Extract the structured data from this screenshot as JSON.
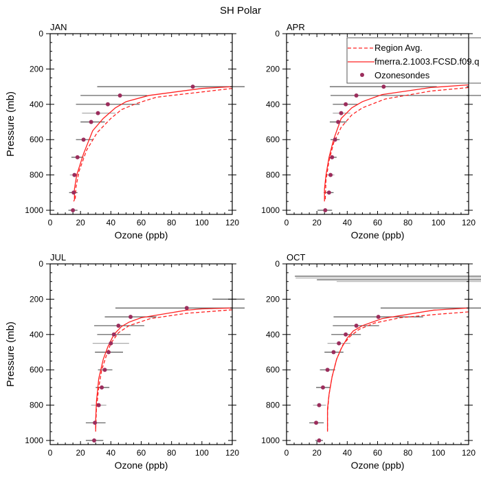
{
  "title": "SH Polar",
  "chart_data": {
    "type": "line",
    "title": "SH Polar",
    "xlabel": "Ozone (ppb)",
    "ylabel": "Pressure (mb)",
    "xlim": [
      0,
      120
    ],
    "ylim": [
      1025,
      0
    ],
    "x_ticks": [
      0,
      20,
      40,
      60,
      80,
      100,
      120
    ],
    "y_ticks": [
      0,
      200,
      400,
      600,
      800,
      1000
    ],
    "grid": false,
    "legend": {
      "placement": "top-right of APR panel",
      "entries": [
        {
          "label": "Region Avg.",
          "style": "dashed-line",
          "color": "#ff2020"
        },
        {
          "label": "fmerra.2.1003.FCSD.f09.q",
          "style": "solid-line",
          "color": "#ff2020"
        },
        {
          "label": "Ozonesondes",
          "style": "marker",
          "color": "#9b2d5c"
        }
      ]
    },
    "colors": {
      "model": "#ff2020",
      "obs": "#9b2d5c",
      "errorbar": "#555555",
      "errorbar_light": "#aaaaaa",
      "axis": "#000000"
    },
    "panels": [
      {
        "label": "JAN",
        "model": [
          [
            120,
            300
          ],
          [
            100,
            310
          ],
          [
            65,
            350
          ],
          [
            50,
            385
          ],
          [
            43,
            420
          ],
          [
            35,
            480
          ],
          [
            28,
            550
          ],
          [
            22,
            680
          ],
          [
            17.5,
            800
          ],
          [
            16,
            880
          ],
          [
            16,
            940
          ],
          [
            15.5,
            950
          ]
        ],
        "region_avg": [
          [
            120,
            310
          ],
          [
            100,
            330
          ],
          [
            70,
            360
          ],
          [
            57,
            395
          ],
          [
            47,
            430
          ],
          [
            40,
            480
          ],
          [
            31,
            560
          ],
          [
            24,
            660
          ],
          [
            19,
            780
          ],
          [
            17,
            870
          ],
          [
            16.5,
            940
          ]
        ],
        "sondes": [
          {
            "p": 300,
            "v": 94,
            "lo": 31,
            "hi": 125
          },
          {
            "p": 350,
            "v": 46,
            "lo": 20,
            "hi": 64
          },
          {
            "p": 400,
            "v": 38,
            "lo": 17,
            "hi": 59
          },
          {
            "p": 450,
            "v": 31.5,
            "lo": 21,
            "hi": 43
          },
          {
            "p": 500,
            "v": 27,
            "lo": 20,
            "hi": 36
          },
          {
            "p": 600,
            "v": 22,
            "lo": 17,
            "hi": 28
          },
          {
            "p": 700,
            "v": 18,
            "lo": 14,
            "hi": 22
          },
          {
            "p": 800,
            "v": 16,
            "lo": 13,
            "hi": 19
          },
          {
            "p": 900,
            "v": 15.5,
            "lo": 12.5,
            "hi": 18
          },
          {
            "p": 1000,
            "v": 15,
            "lo": 12,
            "hi": 18
          }
        ]
      },
      {
        "label": "APR",
        "model": [
          [
            120,
            290
          ],
          [
            95,
            305
          ],
          [
            63,
            345
          ],
          [
            50,
            385
          ],
          [
            43,
            420
          ],
          [
            36,
            480
          ],
          [
            31,
            600
          ],
          [
            28,
            700
          ],
          [
            26,
            800
          ],
          [
            25,
            880
          ],
          [
            25,
            950
          ]
        ],
        "region_avg": [
          [
            120,
            305
          ],
          [
            95,
            325
          ],
          [
            65,
            370
          ],
          [
            50,
            420
          ],
          [
            43,
            460
          ],
          [
            36,
            530
          ],
          [
            31,
            620
          ],
          [
            28,
            720
          ],
          [
            26,
            830
          ],
          [
            25.5,
            940
          ]
        ],
        "sondes": [
          {
            "p": 300,
            "v": 64,
            "lo": 28.5,
            "hi": 99
          },
          {
            "p": 350,
            "v": 46,
            "lo": 29,
            "hi": 125
          },
          {
            "p": 400,
            "v": 39,
            "lo": 30.5,
            "hi": 47
          },
          {
            "p": 450,
            "v": 36,
            "lo": 30.5,
            "hi": 42
          },
          {
            "p": 500,
            "v": 34,
            "lo": 28.5,
            "hi": 39.5
          },
          {
            "p": 600,
            "v": 32,
            "lo": 29,
            "hi": 35
          },
          {
            "p": 700,
            "v": 30,
            "lo": 28,
            "hi": 33
          },
          {
            "p": 800,
            "v": 29,
            "lo": 26,
            "hi": 31.5
          },
          {
            "p": 900,
            "v": 28,
            "lo": 24.5,
            "hi": 31
          },
          {
            "p": 1000,
            "v": 25.5,
            "lo": 20.5,
            "hi": 30
          }
        ]
      },
      {
        "label": "JUL",
        "model": [
          [
            120,
            250
          ],
          [
            100,
            255
          ],
          [
            90,
            262
          ],
          [
            60,
            305
          ],
          [
            52,
            330
          ],
          [
            47,
            355
          ],
          [
            42,
            400
          ],
          [
            38,
            470
          ],
          [
            35,
            540
          ],
          [
            32,
            650
          ],
          [
            30.5,
            780
          ],
          [
            30,
            880
          ],
          [
            30,
            950
          ]
        ],
        "region_avg": [
          [
            120,
            260
          ],
          [
            90,
            280
          ],
          [
            66,
            310
          ],
          [
            52,
            350
          ],
          [
            45,
            390
          ],
          [
            40,
            450
          ],
          [
            37,
            520
          ],
          [
            34,
            600
          ],
          [
            32,
            700
          ],
          [
            30.5,
            820
          ],
          [
            30,
            940
          ]
        ],
        "sondes": [
          {
            "p": 200,
            "v": null,
            "lo": 107,
            "hi": 125
          },
          {
            "p": 250,
            "v": 90,
            "lo": 43,
            "hi": 125
          },
          {
            "p": 300,
            "v": 53,
            "lo": 36,
            "hi": 70
          },
          {
            "p": 350,
            "v": 45,
            "lo": 29,
            "hi": 62
          },
          {
            "p": 400,
            "v": 42,
            "lo": 31,
            "hi": 53
          },
          {
            "p": 450,
            "v": 40,
            "lo": 28,
            "hi": 52
          },
          {
            "p": 500,
            "v": 38.5,
            "lo": 29.5,
            "hi": 48
          },
          {
            "p": 600,
            "v": 36,
            "lo": 31.5,
            "hi": 41
          },
          {
            "p": 700,
            "v": 34,
            "lo": 30,
            "hi": 39
          },
          {
            "p": 800,
            "v": 32,
            "lo": 27,
            "hi": 37
          },
          {
            "p": 900,
            "v": 29.5,
            "lo": 23.5,
            "hi": 36.5
          },
          {
            "p": 1000,
            "v": 29,
            "lo": 23.5,
            "hi": 35
          }
        ]
      },
      {
        "label": "OCT",
        "model": [
          [
            120,
            250
          ],
          [
            97,
            262
          ],
          [
            63,
            310
          ],
          [
            50,
            350
          ],
          [
            44,
            380
          ],
          [
            40,
            420
          ],
          [
            36,
            480
          ],
          [
            33,
            540
          ],
          [
            30,
            640
          ],
          [
            28,
            740
          ],
          [
            27,
            820
          ],
          [
            27,
            900
          ],
          [
            27,
            950
          ]
        ],
        "region_avg": [
          [
            120,
            272
          ],
          [
            100,
            285
          ],
          [
            75,
            305
          ],
          [
            58,
            335
          ],
          [
            48,
            370
          ],
          [
            42,
            410
          ],
          [
            37,
            460
          ],
          [
            33,
            540
          ],
          [
            30,
            640
          ],
          [
            28,
            740
          ],
          [
            27,
            840
          ],
          [
            27,
            940
          ]
        ],
        "sondes": [
          {
            "p": 70,
            "v": null,
            "lo": 5.5,
            "hi": 125
          },
          {
            "p": 80,
            "v": null,
            "lo": 6,
            "hi": 125
          },
          {
            "p": 90,
            "v": null,
            "lo": 20,
            "hi": 125
          },
          {
            "p": 100,
            "v": null,
            "lo": 33,
            "hi": 125
          },
          {
            "p": 250,
            "v": null,
            "lo": 62,
            "hi": 125
          },
          {
            "p": 300,
            "v": 60.5,
            "lo": 31,
            "hi": 90
          },
          {
            "p": 350,
            "v": 46,
            "lo": 30.5,
            "hi": 61
          },
          {
            "p": 400,
            "v": 39,
            "lo": 29.5,
            "hi": 49
          },
          {
            "p": 450,
            "v": 34.5,
            "lo": 27,
            "hi": 42
          },
          {
            "p": 500,
            "v": 31,
            "lo": 25,
            "hi": 37.5
          },
          {
            "p": 600,
            "v": 27,
            "lo": 22,
            "hi": 32
          },
          {
            "p": 700,
            "v": 24,
            "lo": 19.5,
            "hi": 29
          },
          {
            "p": 800,
            "v": 21.5,
            "lo": 17.5,
            "hi": 26
          },
          {
            "p": 900,
            "v": 19.5,
            "lo": 15,
            "hi": 24.5
          },
          {
            "p": 1000,
            "v": 21.5,
            "lo": 19,
            "hi": 24
          }
        ]
      }
    ]
  }
}
